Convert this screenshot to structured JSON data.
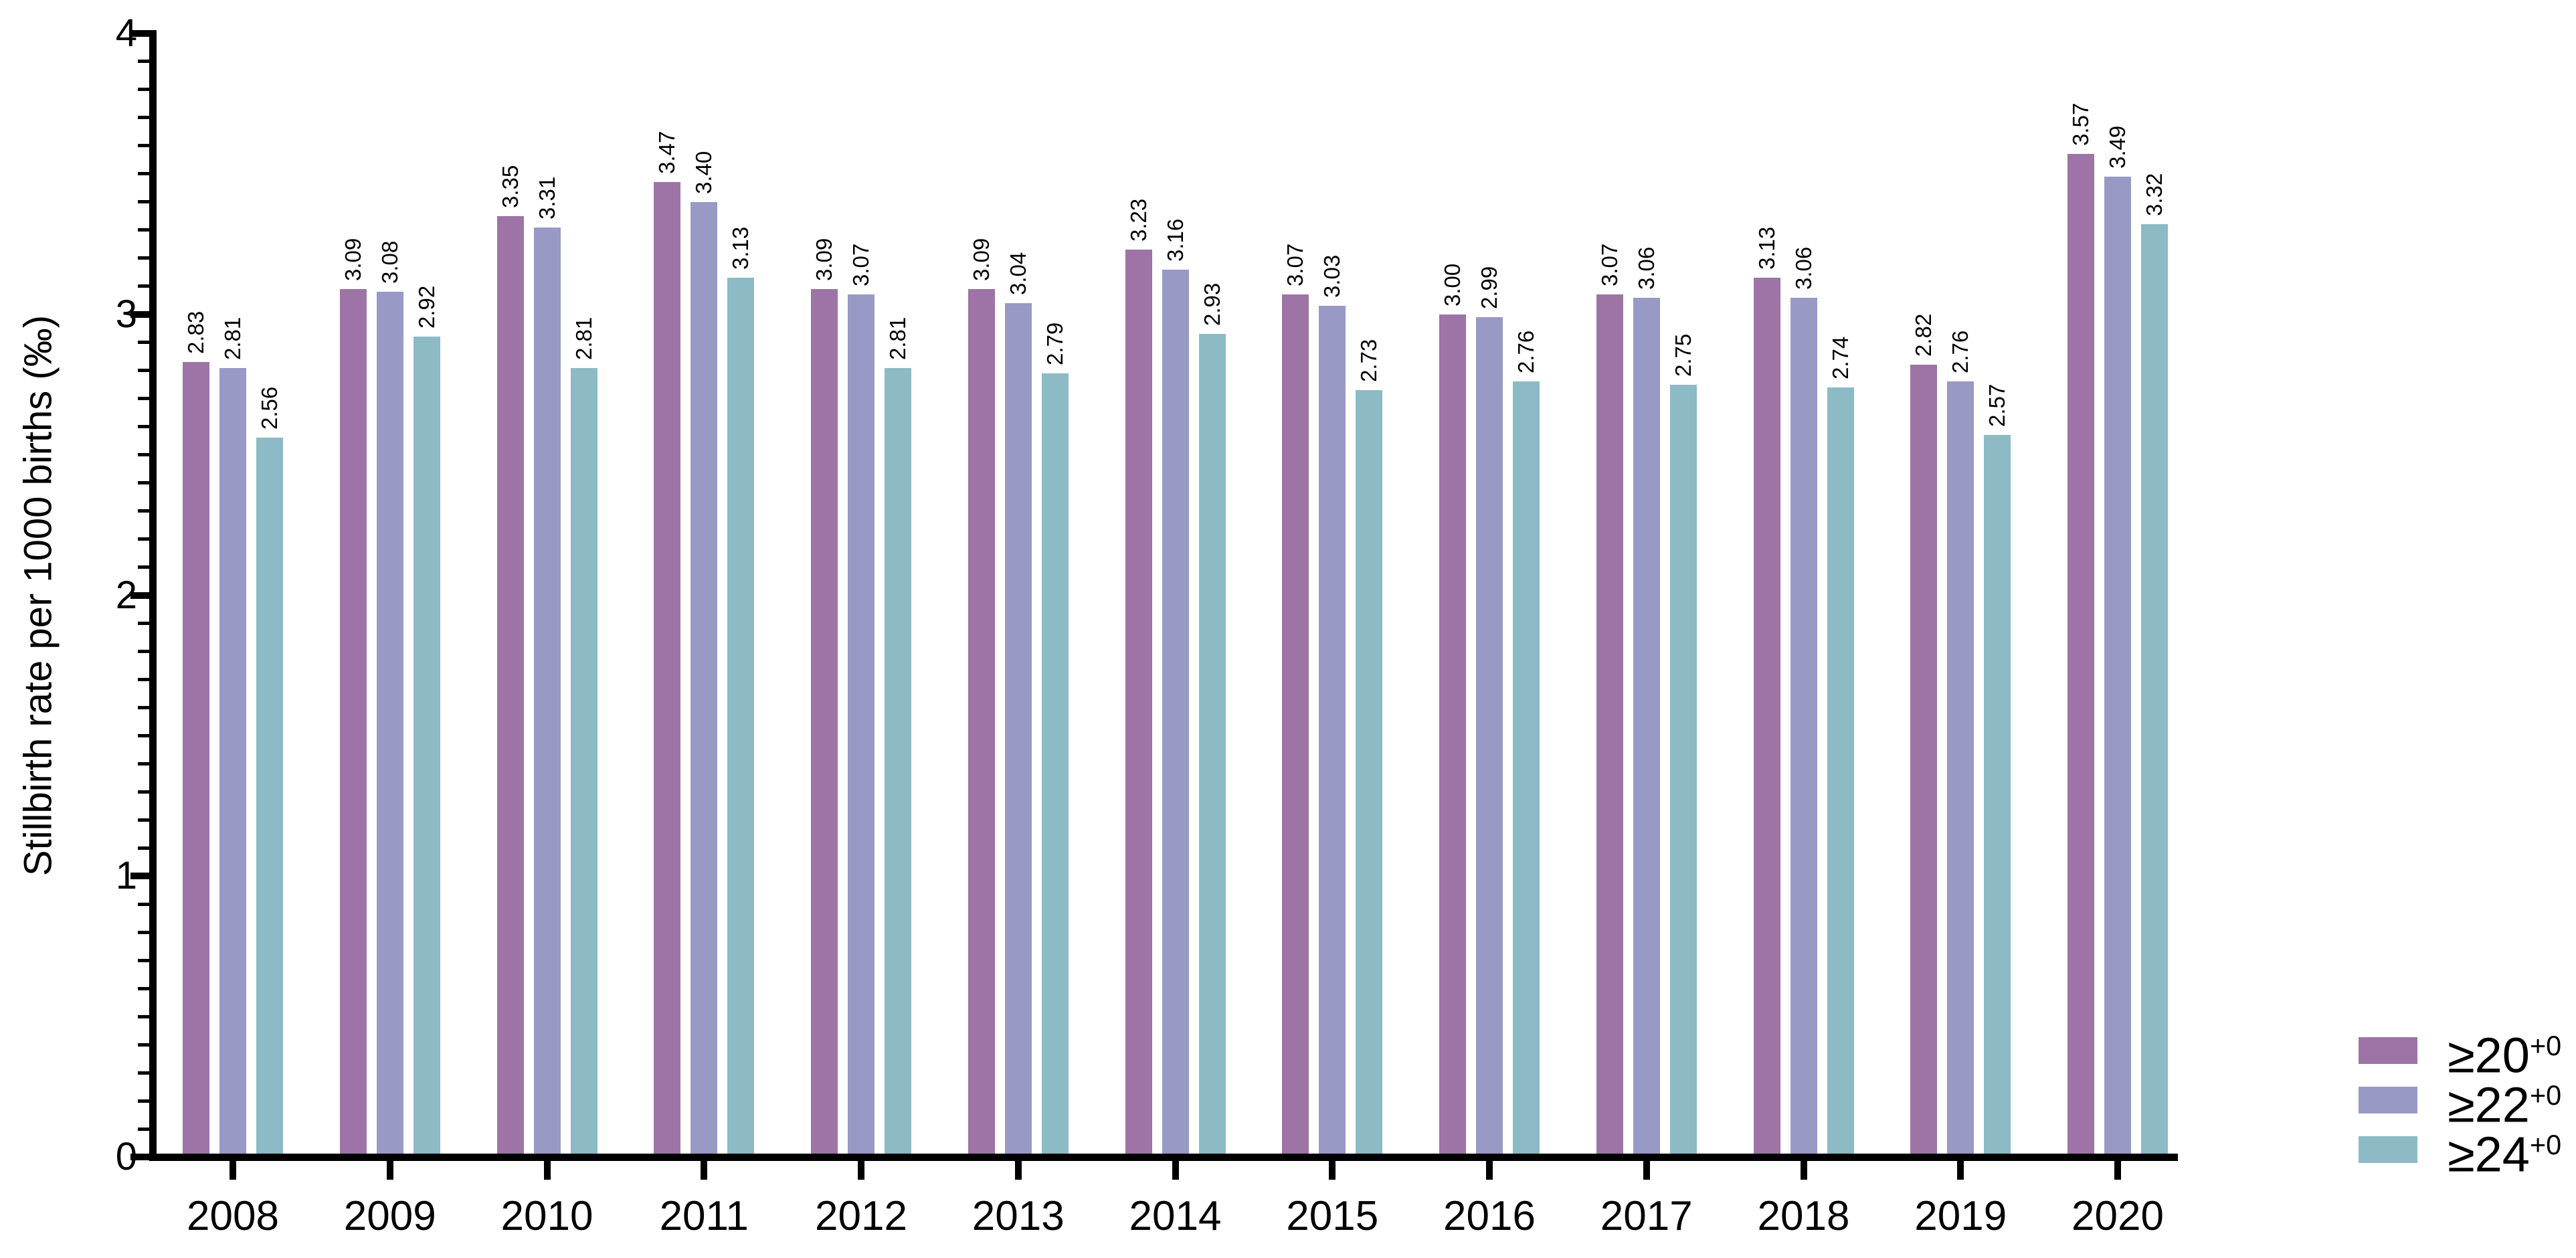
{
  "chart_data": {
    "type": "bar",
    "title": "",
    "xlabel": "",
    "ylabel": "Stillbirth rate per 1000 births (‰)",
    "ylim": [
      0,
      4
    ],
    "yticks": [
      0,
      1,
      2,
      3,
      4
    ],
    "minor_tick_step": 0.1,
    "grid": false,
    "legend_position": "right-bottom",
    "background_color": "#ffffff",
    "axis_color": "#000000",
    "categories": [
      "2008",
      "2009",
      "2010",
      "2011",
      "2012",
      "2013",
      "2014",
      "2015",
      "2016",
      "2017",
      "2018",
      "2019",
      "2020"
    ],
    "series": [
      {
        "name": "≥20+0",
        "label_base": "≥20",
        "label_sup": "+0",
        "key": "ge20",
        "color": "#9d74a5",
        "values": [
          2.83,
          3.09,
          3.35,
          3.47,
          3.09,
          3.09,
          3.23,
          3.07,
          3.0,
          3.07,
          3.13,
          2.82,
          3.57
        ]
      },
      {
        "name": "≥22+0",
        "label_base": "≥22",
        "label_sup": "+0",
        "key": "ge22",
        "color": "#9899c5",
        "values": [
          2.81,
          3.08,
          3.31,
          3.4,
          3.07,
          3.04,
          3.16,
          3.03,
          2.99,
          3.06,
          3.06,
          2.76,
          3.49
        ]
      },
      {
        "name": "≥24+0",
        "label_base": "≥24",
        "label_sup": "+0",
        "key": "ge24",
        "color": "#8cbac5",
        "values": [
          2.56,
          2.92,
          2.81,
          3.13,
          2.81,
          2.79,
          2.93,
          2.73,
          2.76,
          2.75,
          2.74,
          2.57,
          3.32
        ]
      }
    ],
    "value_label_decimals": 2
  }
}
